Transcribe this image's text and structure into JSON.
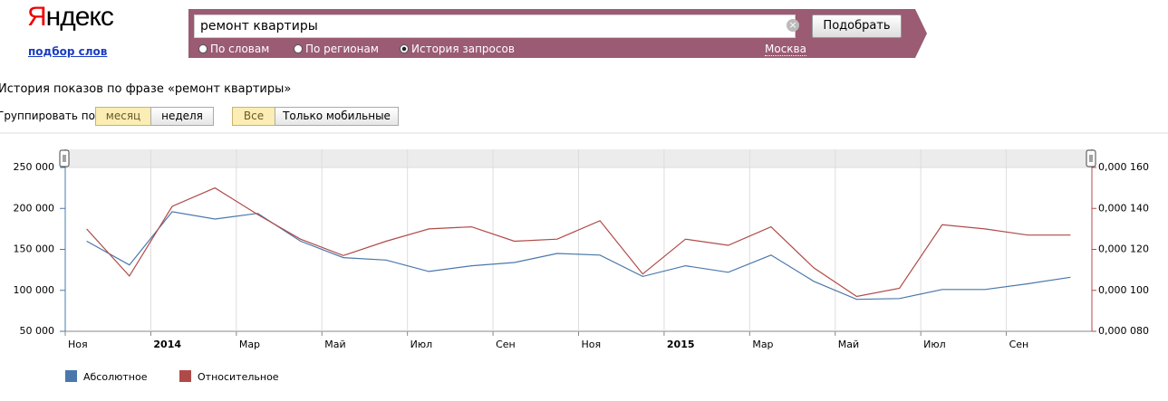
{
  "header": {
    "logo": "Яндекс",
    "logo_link": "подбор слов",
    "query": "ремонт квартиры",
    "submit": "Подобрать",
    "modes": [
      "По словам",
      "По регионам",
      "История запросов"
    ],
    "region": "Москва"
  },
  "heading": "История показов по фразе «ремонт квартиры»",
  "controls": {
    "group_label": "Группировать по:",
    "group_options": [
      "месяц",
      "неделя"
    ],
    "device_options": [
      "Все",
      "Только мобильные"
    ]
  },
  "chart_data": {
    "type": "line",
    "categories": [
      "Ноя",
      null,
      "2014",
      null,
      "Мар",
      null,
      "Май",
      null,
      "Июл",
      null,
      "Сен",
      null,
      "Ноя",
      null,
      "2015",
      null,
      "Мар",
      null,
      "Май",
      null,
      "Июл",
      null,
      "Сен",
      null
    ],
    "series": [
      {
        "name": "Абсолютное",
        "color": "#4a78aa",
        "values": [
          160000,
          131000,
          196000,
          187000,
          194000,
          160000,
          140000,
          137000,
          123000,
          130000,
          134000,
          145000,
          143000,
          117000,
          130000,
          122000,
          143000,
          111000,
          89000,
          90000,
          101000,
          101000,
          108000,
          116000
        ]
      },
      {
        "name": "Относительное",
        "color": "#b04a48",
        "axis": "y2",
        "values": [
          0.00013,
          0.000107,
          0.000141,
          0.00015,
          0.000137,
          0.000125,
          0.000117,
          0.000124,
          0.00013,
          0.000131,
          0.000124,
          0.000125,
          0.000134,
          0.000108,
          0.000125,
          0.000122,
          0.000131,
          0.000111,
          9.7e-05,
          0.000101,
          0.000132,
          0.00013,
          0.000127,
          0.000127
        ]
      }
    ],
    "ylim": [
      50000,
      250000
    ],
    "yticks": [
      {
        "value": 50000,
        "label": "50 000"
      },
      {
        "value": 100000,
        "label": "100 000"
      },
      {
        "value": 150000,
        "label": "150 000"
      },
      {
        "value": 200000,
        "label": "200 000"
      },
      {
        "value": 250000,
        "label": "250 000"
      }
    ],
    "y2lim": [
      8e-05,
      0.00016
    ],
    "y2ticks": [
      {
        "value": 8e-05,
        "label": "0,000 080"
      },
      {
        "value": 0.0001,
        "label": "0,000 100"
      },
      {
        "value": 0.00012,
        "label": "0,000 120"
      },
      {
        "value": 0.00014,
        "label": "0,000 140"
      },
      {
        "value": 0.00016,
        "label": "0,000 160"
      }
    ],
    "grid": true
  }
}
